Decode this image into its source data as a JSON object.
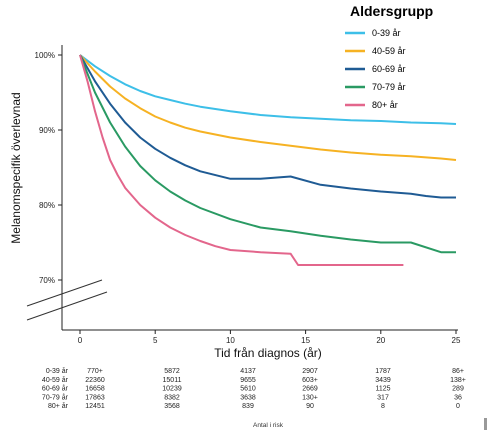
{
  "chart_data": {
    "type": "line",
    "title": "",
    "xlabel": "Tid från diagnos (år)",
    "ylabel": "Melanomspecifik överlevnad",
    "xlim": [
      0,
      25
    ],
    "ylim": [
      0.7,
      1.0
    ],
    "x_ticks": [
      "0",
      "5",
      "10",
      "15",
      "20",
      "25"
    ],
    "y_ticks": [
      "100%",
      "90%",
      "80%",
      "70%"
    ],
    "grid": false,
    "axis_break": true,
    "legend": {
      "title": "Aldersgrupp",
      "placement": "top-right"
    },
    "series": [
      {
        "name": "0-39 år",
        "color": "#3dbfe8",
        "x": [
          0,
          1,
          2,
          3,
          4,
          5,
          6,
          7,
          8,
          10,
          12,
          14,
          16,
          18,
          20,
          22,
          24,
          25
        ],
        "y": [
          1.0,
          0.985,
          0.972,
          0.961,
          0.952,
          0.945,
          0.94,
          0.935,
          0.931,
          0.925,
          0.92,
          0.917,
          0.915,
          0.913,
          0.912,
          0.91,
          0.909,
          0.908
        ]
      },
      {
        "name": "40-59 år",
        "color": "#f6b223",
        "x": [
          0,
          1,
          2,
          3,
          4,
          5,
          6,
          7,
          8,
          10,
          12,
          14,
          16,
          18,
          20,
          22,
          24,
          25
        ],
        "y": [
          1.0,
          0.978,
          0.958,
          0.942,
          0.929,
          0.918,
          0.91,
          0.903,
          0.898,
          0.89,
          0.884,
          0.879,
          0.874,
          0.87,
          0.867,
          0.865,
          0.862,
          0.86
        ]
      },
      {
        "name": "60-69 år",
        "color": "#1f5b94",
        "x": [
          0,
          1,
          2,
          3,
          4,
          5,
          6,
          7,
          8,
          10,
          12,
          14,
          16,
          18,
          20,
          22,
          23,
          24,
          25
        ],
        "y": [
          1.0,
          0.965,
          0.935,
          0.91,
          0.89,
          0.875,
          0.863,
          0.853,
          0.845,
          0.835,
          0.835,
          0.838,
          0.827,
          0.822,
          0.818,
          0.815,
          0.812,
          0.81,
          0.81
        ]
      },
      {
        "name": "70-79 år",
        "color": "#2a9a63",
        "x": [
          0,
          1,
          2,
          3,
          4,
          5,
          6,
          7,
          8,
          10,
          12,
          14,
          16,
          18,
          20,
          22,
          24,
          25
        ],
        "y": [
          1.0,
          0.95,
          0.91,
          0.878,
          0.852,
          0.833,
          0.818,
          0.806,
          0.796,
          0.781,
          0.77,
          0.765,
          0.759,
          0.754,
          0.75,
          0.75,
          0.737,
          0.737
        ]
      },
      {
        "name": "80+ år",
        "color": "#e3668c",
        "x": [
          0,
          0.5,
          1,
          1.5,
          2,
          2.5,
          3,
          4,
          5,
          6,
          7,
          8,
          9,
          10,
          12,
          14,
          14.5,
          16,
          18,
          20,
          21.5
        ],
        "y": [
          1.0,
          0.965,
          0.925,
          0.89,
          0.86,
          0.84,
          0.823,
          0.8,
          0.783,
          0.77,
          0.76,
          0.752,
          0.745,
          0.74,
          0.737,
          0.735,
          0.72,
          0.72,
          0.72,
          0.72,
          0.72
        ]
      }
    ],
    "risk_table": {
      "caption": "Antal i risk",
      "rows": [
        {
          "label": "0-39 år",
          "values": [
            "770+",
            "5872",
            "4137",
            "2907",
            "1787",
            "86+"
          ]
        },
        {
          "label": "40-59 år",
          "values": [
            "22360",
            "15011",
            "9655",
            "603+",
            "3439",
            "138+"
          ]
        },
        {
          "label": "60-69 år",
          "values": [
            "16658",
            "10239",
            "5610",
            "2669",
            "1125",
            "289"
          ]
        },
        {
          "label": "70-79 år",
          "values": [
            "17863",
            "8382",
            "3638",
            "130+",
            "317",
            "36"
          ]
        },
        {
          "label": "80+ år",
          "values": [
            "12451",
            "3568",
            "839",
            "90",
            "8",
            "0"
          ]
        }
      ]
    }
  }
}
